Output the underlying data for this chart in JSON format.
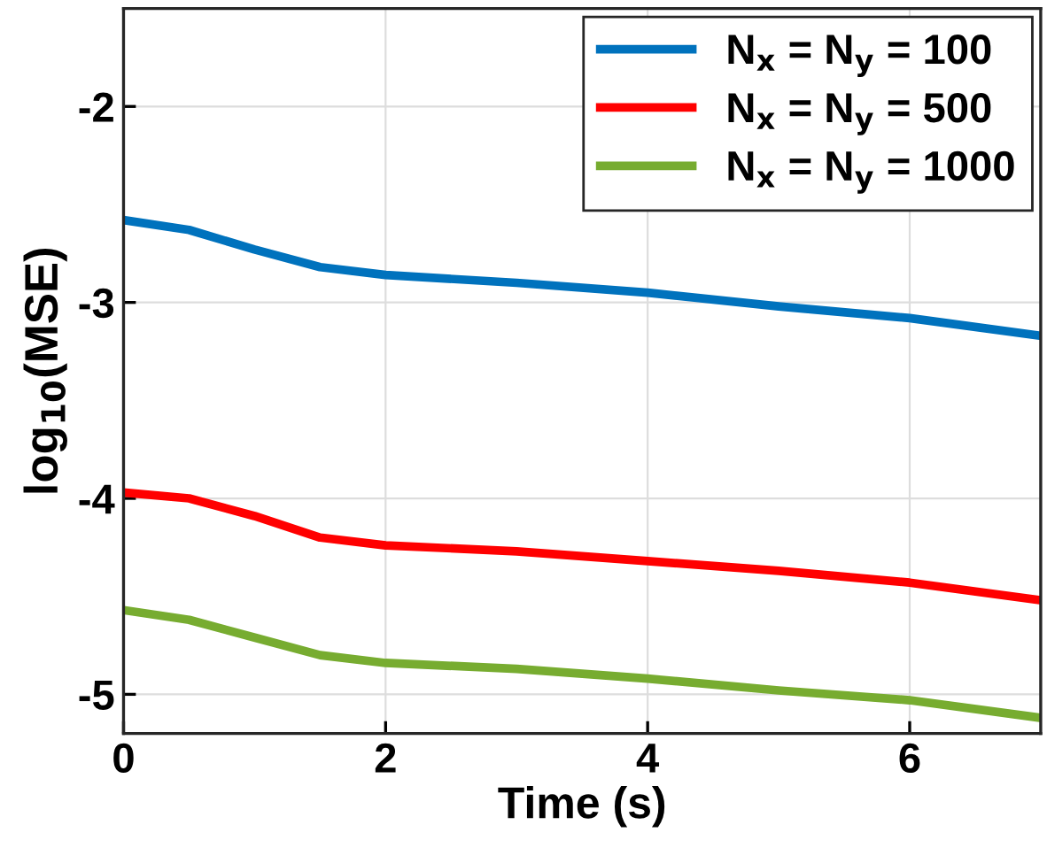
{
  "chart_data": {
    "type": "line",
    "xlabel": "Time (s)",
    "ylabel": "log$_{10}$(MSE)",
    "x": [
      0,
      0.5,
      1,
      1.5,
      2,
      3,
      4,
      5,
      6,
      7
    ],
    "series": [
      {
        "name": "N$_{x}$ = N$_{y}$ = 100",
        "color": "#0072bd",
        "values": [
          -2.58,
          -2.63,
          -2.73,
          -2.82,
          -2.86,
          -2.9,
          -2.95,
          -3.02,
          -3.08,
          -3.17
        ]
      },
      {
        "name": "N$_{x}$ = N$_{y}$ = 500",
        "color": "#ff0000",
        "values": [
          -3.97,
          -4.0,
          -4.09,
          -4.2,
          -4.24,
          -4.27,
          -4.32,
          -4.37,
          -4.43,
          -4.52
        ]
      },
      {
        "name": "N$_{x}$ = N$_{y}$ = 1000",
        "color": "#77ac30",
        "values": [
          -4.57,
          -4.62,
          -4.71,
          -4.8,
          -4.84,
          -4.87,
          -4.92,
          -4.98,
          -5.03,
          -5.12
        ]
      }
    ],
    "xlim": [
      0,
      7
    ],
    "xticks": [
      0,
      2,
      4,
      6
    ],
    "ylim": [
      -5.2,
      -1.5
    ],
    "yticks": [
      -5,
      -4,
      -3,
      -2
    ],
    "grid": true,
    "legend": "top right",
    "line_style": "solid",
    "marker": "none"
  }
}
